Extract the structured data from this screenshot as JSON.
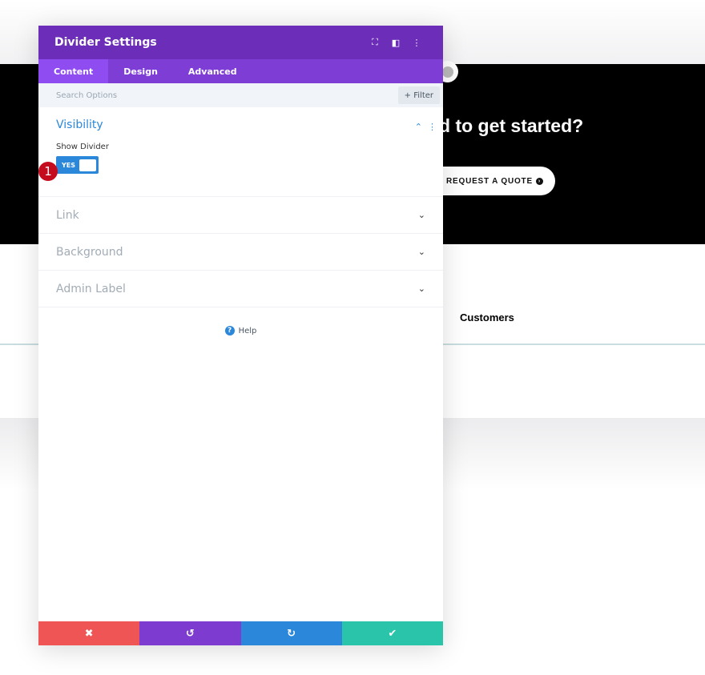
{
  "page": {
    "headline": "d to get started?",
    "cta": "REQUEST A QUOTE",
    "cta_icon": "arrow-circle-right-icon",
    "customers": "Customers"
  },
  "modal": {
    "title": "Divider Settings",
    "header_icons": [
      "fullscreen-icon",
      "split-view-icon",
      "more-vertical-icon"
    ],
    "tabs": [
      {
        "label": "Content",
        "active": true
      },
      {
        "label": "Design"
      },
      {
        "label": "Advanced"
      }
    ],
    "search": {
      "placeholder": "Search Options",
      "filter_label": "Filter"
    },
    "visibility": {
      "title": "Visibility",
      "field_label": "Show Divider",
      "toggle_value": "YES",
      "toggle_on": true
    },
    "sections": [
      {
        "label": "Link"
      },
      {
        "label": "Background"
      },
      {
        "label": "Admin Label"
      }
    ],
    "help_label": "Help",
    "step_badge": "1",
    "footer": {
      "colors": {
        "cancel": "#ef5555",
        "undo": "#7e3bd0",
        "redo": "#2b87da",
        "save": "#29c4a9"
      }
    }
  },
  "colors": {
    "header": "#6c2eb9",
    "tabs": "#7e3ed6",
    "accent": "#2b87da"
  }
}
